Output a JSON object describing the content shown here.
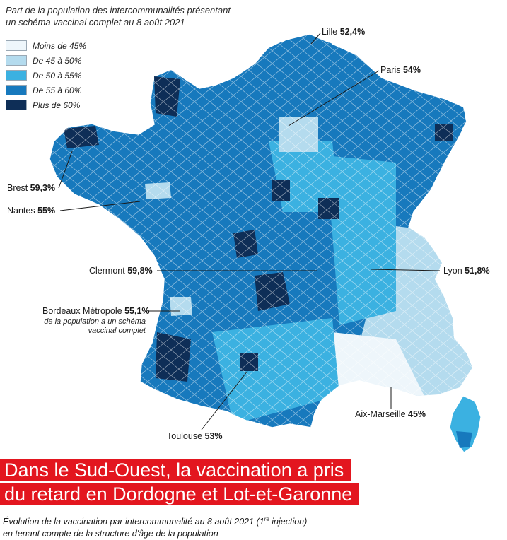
{
  "header": {
    "subtitle_line1": "Part de la population des intercommunalités présentant",
    "subtitle_line2": "un schéma vaccinal complet au 8 août 2021"
  },
  "legend": [
    {
      "label": "Moins de 45%",
      "color": "#eef6fb"
    },
    {
      "label": "De 45 à 50%",
      "color": "#b4dbee"
    },
    {
      "label": "De 50 à 55%",
      "color": "#3bb1e1"
    },
    {
      "label": "De 55 à 60%",
      "color": "#1779bd"
    },
    {
      "label": "Plus de 60%",
      "color": "#0e2e57"
    }
  ],
  "cities": [
    {
      "name": "Lille",
      "value": "52,4%"
    },
    {
      "name": "Paris",
      "value": "54%"
    },
    {
      "name": "Brest",
      "value": "59,3%"
    },
    {
      "name": "Nantes",
      "value": "55%"
    },
    {
      "name": "Clermont",
      "value": "59,8%"
    },
    {
      "name": "Lyon",
      "value": "51,8%"
    },
    {
      "name": "Bordeaux Métropole",
      "value": "55,1%"
    },
    {
      "name": "Aix-Marseille",
      "value": "45%"
    },
    {
      "name": "Toulouse",
      "value": "53%"
    }
  ],
  "bordeaux_note": {
    "line1": "de la population a un schéma",
    "line2": "vaccinal complet"
  },
  "headline": {
    "line1": "Dans le Sud-Ouest, la vaccination a pris",
    "line2": "du retard en Dordogne et Lot-et-Garonne"
  },
  "caption": {
    "part1": "Évolution de la vaccination par intercommunalité au 8 août 2021 (1",
    "sup": "re",
    "part2": " injection)",
    "line2": "en tenant compte de la structure d'âge de la population"
  },
  "colors": {
    "headline_bg": "#e3161f"
  }
}
